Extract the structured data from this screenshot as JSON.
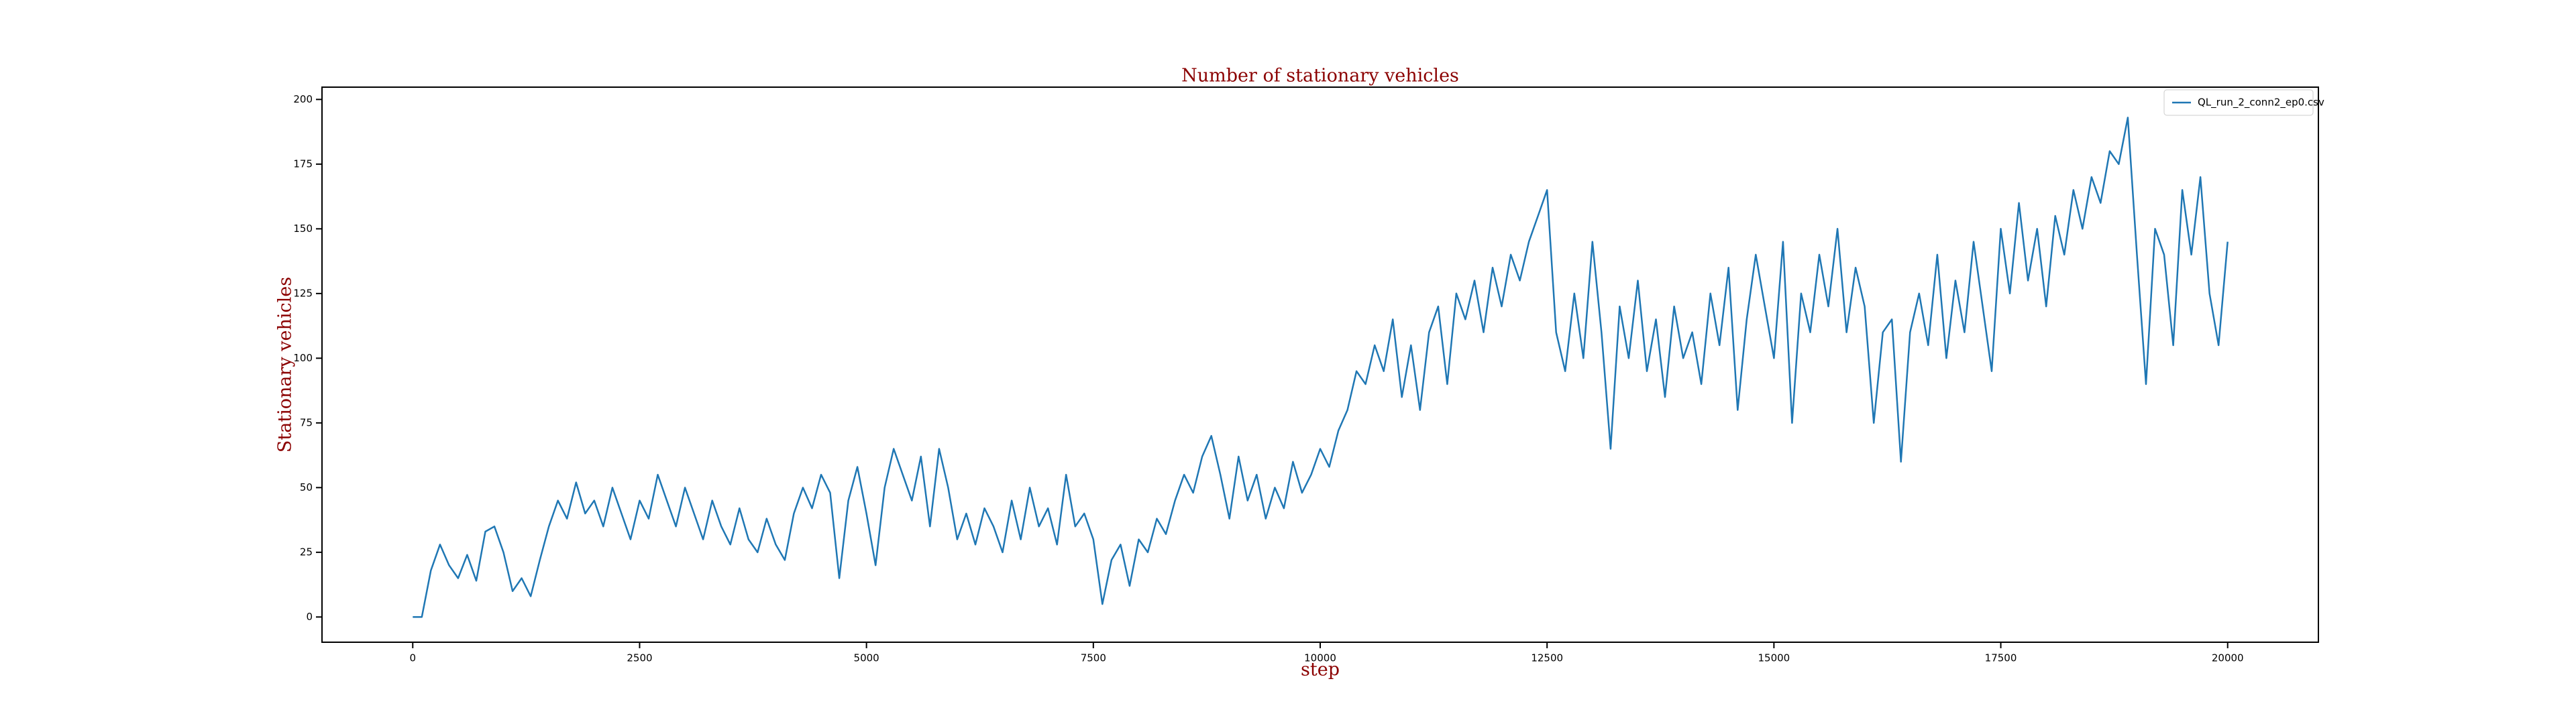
{
  "chart_data": {
    "type": "line",
    "title": "Number of stationary vehicles",
    "x_label": "step",
    "y_label": "Stationary vehicles",
    "x": [
      0,
      100,
      200,
      300,
      400,
      500,
      600,
      700,
      800,
      900,
      1000,
      1100,
      1200,
      1300,
      1400,
      1500,
      1600,
      1700,
      1800,
      1900,
      2000,
      2100,
      2200,
      2300,
      2400,
      2500,
      2600,
      2700,
      2800,
      2900,
      3000,
      3100,
      3200,
      3300,
      3400,
      3500,
      3600,
      3700,
      3800,
      3900,
      4000,
      4100,
      4200,
      4300,
      4400,
      4500,
      4600,
      4700,
      4800,
      4900,
      5000,
      5100,
      5200,
      5300,
      5400,
      5500,
      5600,
      5700,
      5800,
      5900,
      6000,
      6100,
      6200,
      6300,
      6400,
      6500,
      6600,
      6700,
      6800,
      6900,
      7000,
      7100,
      7200,
      7300,
      7400,
      7500,
      7600,
      7700,
      7800,
      7900,
      8000,
      8100,
      8200,
      8300,
      8400,
      8500,
      8600,
      8700,
      8800,
      8900,
      9000,
      9100,
      9200,
      9300,
      9400,
      9500,
      9600,
      9700,
      9800,
      9900,
      10000,
      10100,
      10200,
      10300,
      10400,
      10500,
      10600,
      10700,
      10800,
      10900,
      11000,
      11100,
      11200,
      11300,
      11400,
      11500,
      11600,
      11700,
      11800,
      11900,
      12000,
      12100,
      12200,
      12300,
      12400,
      12500,
      12600,
      12700,
      12800,
      12900,
      13000,
      13100,
      13200,
      13300,
      13400,
      13500,
      13600,
      13700,
      13800,
      13900,
      14000,
      14100,
      14200,
      14300,
      14400,
      14500,
      14600,
      14700,
      14800,
      14900,
      15000,
      15100,
      15200,
      15300,
      15400,
      15500,
      15600,
      15700,
      15800,
      15900,
      16000,
      16100,
      16200,
      16300,
      16400,
      16500,
      16600,
      16700,
      16800,
      16900,
      17000,
      17100,
      17200,
      17300,
      17400,
      17500,
      17600,
      17700,
      17800,
      17900,
      18000,
      18100,
      18200,
      18300,
      18400,
      18500,
      18600,
      18700,
      18800,
      18900,
      19000,
      19100,
      19200,
      19300,
      19400,
      19500,
      19600,
      19700,
      19800,
      19900,
      20000
    ],
    "series": [
      {
        "name": "QL_run_2_conn2_ep0.csv",
        "color": "#1f77b4",
        "values": [
          0,
          0,
          18,
          28,
          20,
          15,
          24,
          14,
          33,
          35,
          25,
          10,
          15,
          8,
          22,
          35,
          45,
          38,
          52,
          40,
          45,
          35,
          50,
          40,
          30,
          45,
          38,
          55,
          45,
          35,
          50,
          40,
          30,
          45,
          35,
          28,
          42,
          30,
          25,
          38,
          28,
          22,
          40,
          50,
          42,
          55,
          48,
          15,
          45,
          58,
          40,
          20,
          50,
          65,
          55,
          45,
          62,
          35,
          65,
          50,
          30,
          40,
          28,
          42,
          35,
          25,
          45,
          30,
          50,
          35,
          42,
          28,
          55,
          35,
          40,
          30,
          5,
          22,
          28,
          12,
          30,
          25,
          38,
          32,
          45,
          55,
          48,
          62,
          70,
          55,
          38,
          62,
          45,
          55,
          38,
          50,
          42,
          60,
          48,
          55,
          65,
          58,
          72,
          80,
          95,
          90,
          105,
          95,
          115,
          85,
          105,
          80,
          110,
          120,
          90,
          125,
          115,
          130,
          110,
          135,
          120,
          140,
          130,
          145,
          155,
          165,
          110,
          95,
          125,
          100,
          145,
          110,
          65,
          120,
          100,
          130,
          95,
          115,
          85,
          120,
          100,
          110,
          90,
          125,
          105,
          135,
          80,
          115,
          140,
          120,
          100,
          145,
          75,
          125,
          110,
          140,
          120,
          150,
          110,
          135,
          120,
          75,
          110,
          115,
          60,
          110,
          125,
          105,
          140,
          100,
          130,
          110,
          145,
          120,
          95,
          150,
          125,
          160,
          130,
          150,
          120,
          155,
          140,
          165,
          150,
          170,
          160,
          180,
          175,
          193,
          140,
          90,
          150,
          140,
          105,
          165,
          140,
          170,
          125,
          105,
          145
        ]
      }
    ],
    "xlim": [
      -1000,
      21000
    ],
    "ylim": [
      -9.75,
      204.75
    ],
    "xticks": [
      0,
      2500,
      5000,
      7500,
      10000,
      12500,
      15000,
      17500,
      20000
    ],
    "yticks": [
      0,
      25,
      50,
      75,
      100,
      125,
      150,
      175,
      200
    ],
    "legend": "upper right",
    "grid": false
  }
}
